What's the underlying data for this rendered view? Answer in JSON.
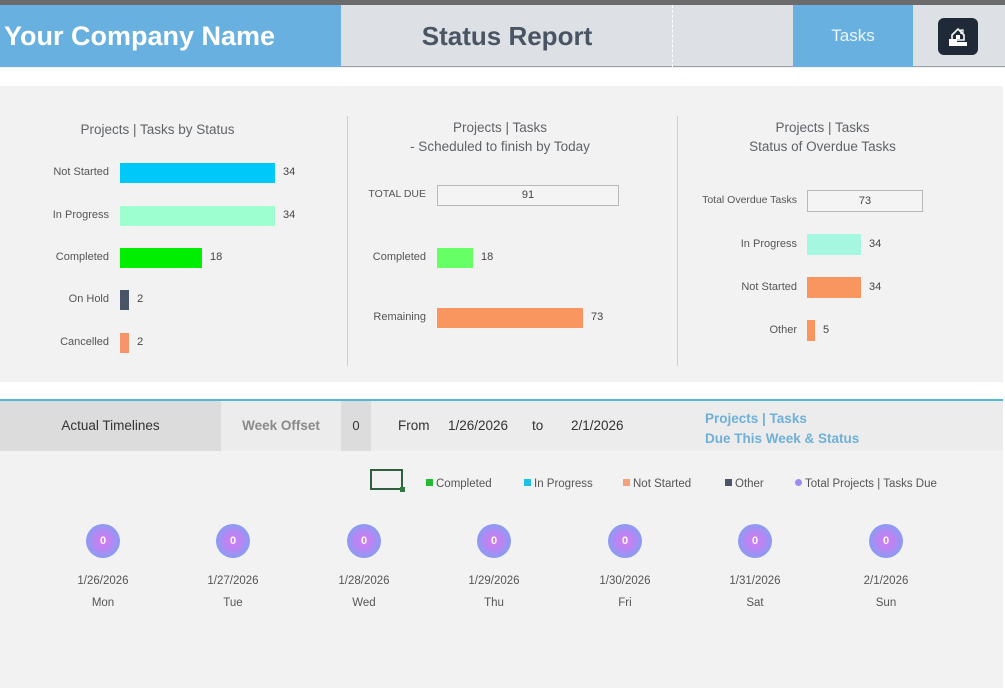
{
  "header": {
    "company_name": "Your Company Name",
    "title": "Status Report",
    "tasks_button": "Tasks",
    "home_button_icon": "home-icon"
  },
  "colors": {
    "header_blue": "#68b0e0",
    "not_started_cyan": "#00c8f8",
    "in_progress_mint": "#9dffd0",
    "completed_green": "#00ee00",
    "on_hold_slate": "#4a5568",
    "cancelled_orange": "#f4956a",
    "accent_teal": "#4fb9d6"
  },
  "chart_data": [
    {
      "type": "bar",
      "orientation": "horizontal",
      "title": "Projects | Tasks by Status",
      "categories": [
        "Not Started",
        "In Progress",
        "Completed",
        "On Hold",
        "Cancelled"
      ],
      "values": [
        34,
        34,
        18,
        2,
        2
      ],
      "colors": [
        "#00c8f8",
        "#9dffd0",
        "#00ee00",
        "#4a5568",
        "#f4956a"
      ]
    },
    {
      "type": "bar",
      "orientation": "horizontal",
      "title": "Projects | Tasks",
      "subtitle": "- Scheduled to finish by Today",
      "total_label": "TOTAL DUE",
      "total_value": 91,
      "categories": [
        "Completed",
        "Remaining"
      ],
      "values": [
        18,
        73
      ],
      "colors": [
        "#66ff66",
        "#f9965f"
      ]
    },
    {
      "type": "bar",
      "orientation": "horizontal",
      "title": "Projects | Tasks",
      "subtitle": "Status of Overdue Tasks",
      "total_label": "Total Overdue Tasks",
      "total_value": 73,
      "categories": [
        "In Progress",
        "Not Started",
        "Other"
      ],
      "values": [
        34,
        34,
        5
      ],
      "colors": [
        "#a6f7df",
        "#f9965f",
        "#f9965f"
      ]
    }
  ],
  "timeline": {
    "actual_label": "Actual Timelines",
    "week_offset_label": "Week Offset",
    "week_offset_value": "0",
    "from_label": "From",
    "from_date": "1/26/2026",
    "to_label": "to",
    "to_date": "2/1/2026",
    "due_title_line1": "Projects | Tasks",
    "due_title_line2": "Due This Week & Status",
    "legend": [
      {
        "label": "Completed",
        "color": "#22bb33",
        "shape": "square"
      },
      {
        "label": "In Progress",
        "color": "#1ec0e8",
        "shape": "square"
      },
      {
        "label": "Not Started",
        "color": "#f4a27c",
        "shape": "square"
      },
      {
        "label": "Other",
        "color": "#4a5568",
        "shape": "square"
      },
      {
        "label": "Total Projects | Tasks Due",
        "color": "#9b8cf0",
        "shape": "circle"
      }
    ],
    "days": [
      {
        "count": "0",
        "date": "1/26/2026",
        "day": "Mon"
      },
      {
        "count": "0",
        "date": "1/27/2026",
        "day": "Tue"
      },
      {
        "count": "0",
        "date": "1/28/2026",
        "day": "Wed"
      },
      {
        "count": "0",
        "date": "1/29/2026",
        "day": "Thu"
      },
      {
        "count": "0",
        "date": "1/30/2026",
        "day": "Fri"
      },
      {
        "count": "0",
        "date": "1/31/2026",
        "day": "Sat"
      },
      {
        "count": "0",
        "date": "2/1/2026",
        "day": "Sun"
      }
    ]
  }
}
